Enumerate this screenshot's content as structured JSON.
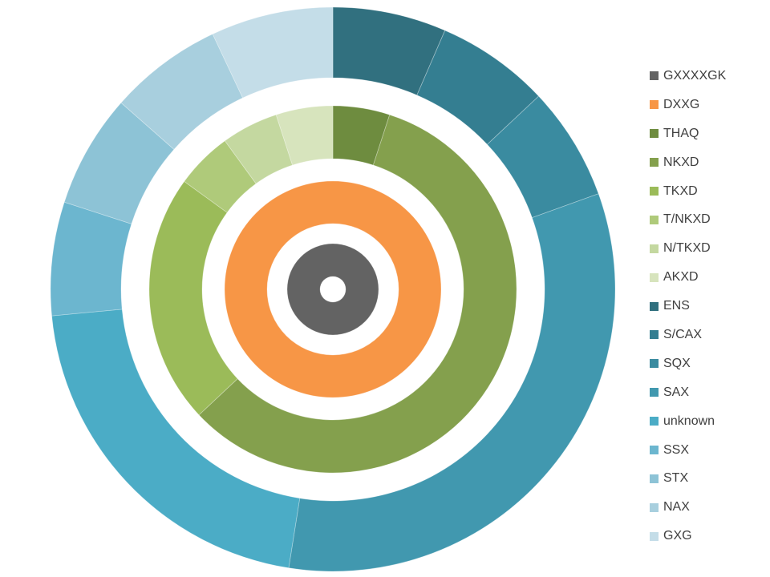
{
  "chart_data": {
    "type": "sunburst",
    "legend_position": "right",
    "rings": [
      {
        "name": "GXXXXGK",
        "segments": [
          {
            "label": "GXXXXGK",
            "value": 100,
            "color": "#636363"
          }
        ]
      },
      {
        "name": "DXXG",
        "segments": [
          {
            "label": "DXXG",
            "value": 100,
            "color": "#F79646"
          }
        ]
      },
      {
        "name": "green",
        "segments": [
          {
            "label": "THAQ",
            "value": 5,
            "color": "#6E8C3F"
          },
          {
            "label": "NKXD",
            "value": 58,
            "color": "#84A04D"
          },
          {
            "label": "TKXD",
            "value": 22,
            "color": "#9BBB59"
          },
          {
            "label": "T/NKXD",
            "value": 5,
            "color": "#AFCA7A"
          },
          {
            "label": "N/TKXD",
            "value": 5,
            "color": "#C4D8A0"
          },
          {
            "label": "AKXD",
            "value": 5,
            "color": "#D7E4BD"
          }
        ]
      },
      {
        "name": "blue",
        "segments": [
          {
            "label": "ENS",
            "value": 6.5,
            "color": "#31707F"
          },
          {
            "label": "S/CAX",
            "value": 6.5,
            "color": "#347E91"
          },
          {
            "label": "SQX",
            "value": 6.5,
            "color": "#3A8BA0"
          },
          {
            "label": "SAX",
            "value": 33,
            "color": "#4198AF"
          },
          {
            "label": "unknown",
            "value": 21,
            "color": "#4BACC6"
          },
          {
            "label": "SSX",
            "value": 6.5,
            "color": "#6CB6CF"
          },
          {
            "label": "STX",
            "value": 6.5,
            "color": "#8DC3D6"
          },
          {
            "label": "NAX",
            "value": 6.5,
            "color": "#A8CFDE"
          },
          {
            "label": "GXG",
            "value": 7,
            "color": "#C4DDE8"
          }
        ]
      }
    ],
    "legend": [
      {
        "label": "GXXXXGK",
        "color": "#636363"
      },
      {
        "label": "DXXG",
        "color": "#F79646"
      },
      {
        "label": "THAQ",
        "color": "#6E8C3F"
      },
      {
        "label": "NKXD",
        "color": "#84A04D"
      },
      {
        "label": "TKXD",
        "color": "#9BBB59"
      },
      {
        "label": "T/NKXD",
        "color": "#AFCA7A"
      },
      {
        "label": "N/TKXD",
        "color": "#C4D8A0"
      },
      {
        "label": "AKXD",
        "color": "#D7E4BD"
      },
      {
        "label": "ENS",
        "color": "#31707F"
      },
      {
        "label": "S/CAX",
        "color": "#347E91"
      },
      {
        "label": "SQX",
        "color": "#3A8BA0"
      },
      {
        "label": "SAX",
        "color": "#4198AF"
      },
      {
        "label": "unknown",
        "color": "#4BACC6"
      },
      {
        "label": "SSX",
        "color": "#6CB6CF"
      },
      {
        "label": "STX",
        "color": "#8DC3D6"
      },
      {
        "label": "NAX",
        "color": "#A8CFDE"
      },
      {
        "label": "GXG",
        "color": "#C4DDE8"
      }
    ]
  }
}
